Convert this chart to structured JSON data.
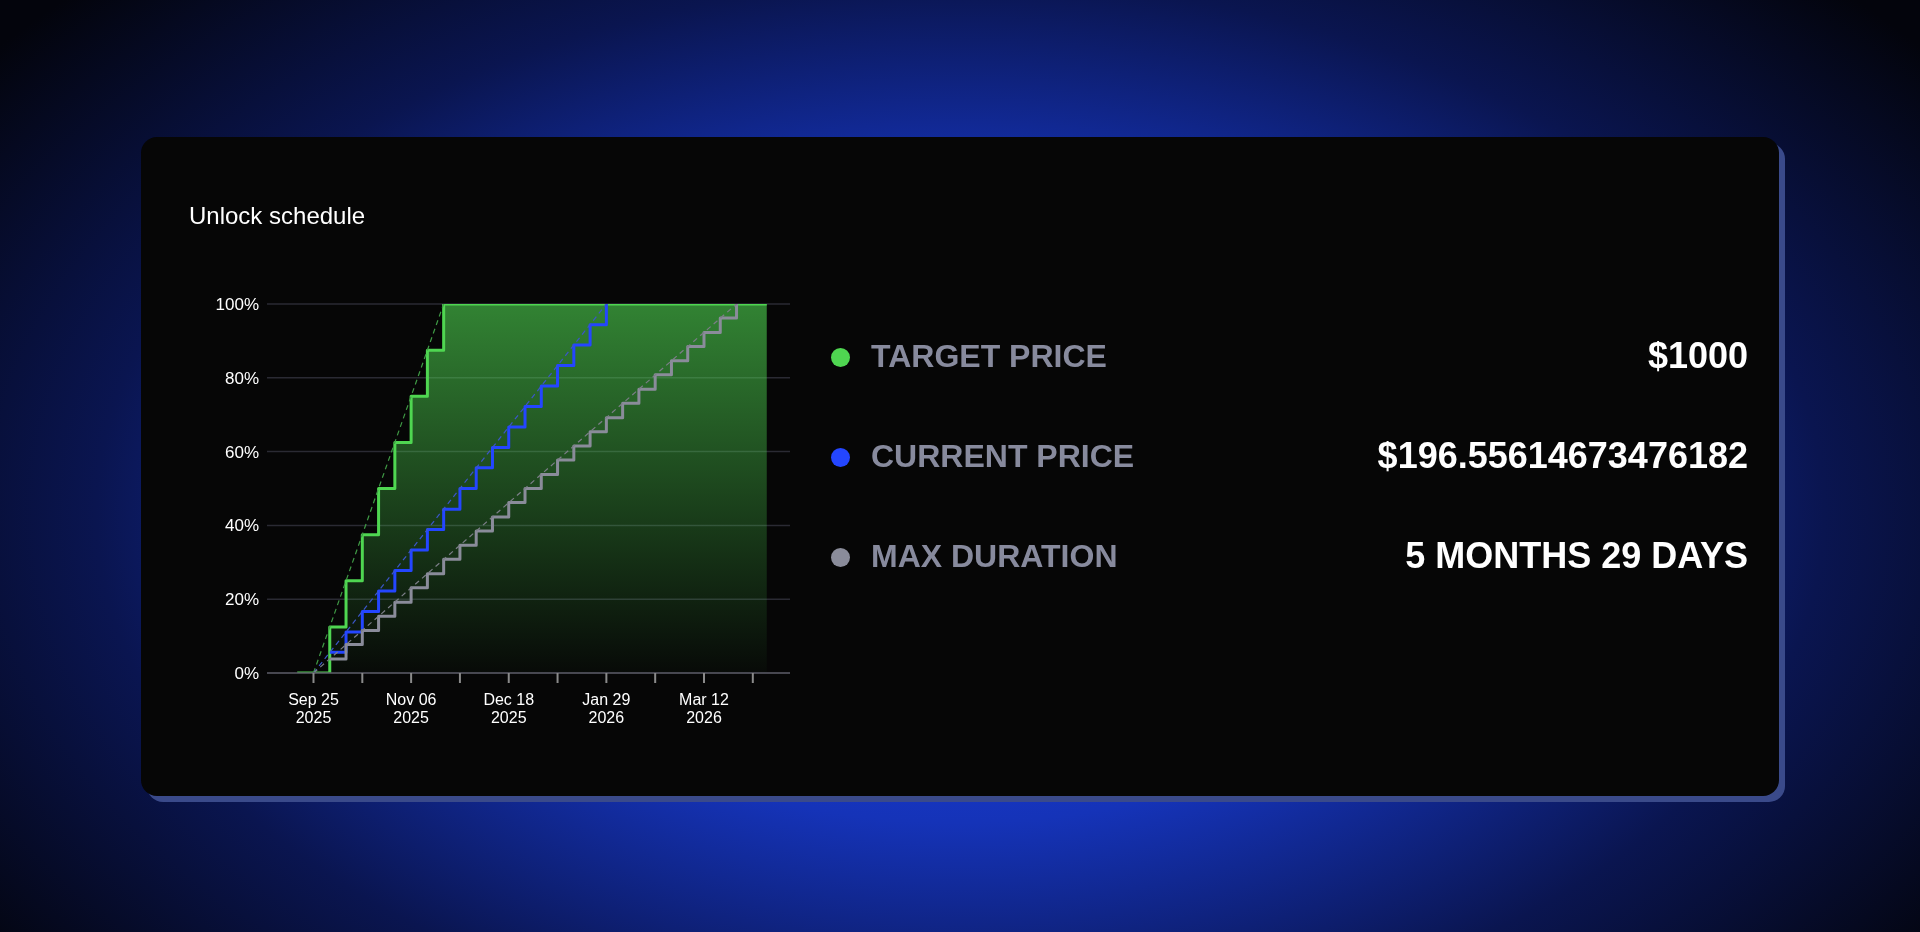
{
  "chart_data": {
    "type": "step",
    "title": "Unlock schedule",
    "xlim": [
      "2025-09-05",
      "2026-04-18"
    ],
    "xticks": [
      {
        "value": "2025-09-25",
        "label": "Sep 25\n2025"
      },
      {
        "value": "2025-10-16",
        "label": null
      },
      {
        "value": "2025-11-06",
        "label": "Nov 06\n2025"
      },
      {
        "value": "2025-11-27",
        "label": null
      },
      {
        "value": "2025-12-18",
        "label": "Dec 18\n2025"
      },
      {
        "value": "2026-01-08",
        "label": null
      },
      {
        "value": "2026-01-29",
        "label": "Jan 29\n2026"
      },
      {
        "value": "2026-02-19",
        "label": null
      },
      {
        "value": "2026-03-12",
        "label": "Mar 12\n2026"
      },
      {
        "value": "2026-04-02",
        "label": null
      }
    ],
    "ylim": [
      0,
      100
    ],
    "yticks": [
      {
        "value": 0,
        "label": "0%"
      },
      {
        "value": 20,
        "label": "20%"
      },
      {
        "value": 40,
        "label": "40%"
      },
      {
        "value": 60,
        "label": "60%"
      },
      {
        "value": 80,
        "label": "80%"
      },
      {
        "value": 100,
        "label": "100%"
      }
    ],
    "grid": "y",
    "legend": "right",
    "series": [
      {
        "name": "TARGET PRICE",
        "type": "area",
        "color": "#4fd651",
        "x": [
          "2025-09-18",
          "2025-10-02",
          "2025-10-09",
          "2025-10-16",
          "2025-10-23",
          "2025-10-30",
          "2025-11-06",
          "2025-11-13",
          "2025-11-20",
          "2026-04-08"
        ],
        "values": [
          0,
          12.5,
          25,
          37.5,
          50,
          62.5,
          75,
          87.5,
          100,
          100
        ]
      },
      {
        "name": "CURRENT PRICE",
        "color": "#2446ff",
        "x": [
          "2025-10-02",
          "2025-10-09",
          "2025-10-16",
          "2025-10-23",
          "2025-10-30",
          "2025-11-06",
          "2025-11-13",
          "2025-11-20",
          "2025-11-27",
          "2025-12-04",
          "2025-12-11",
          "2025-12-18",
          "2025-12-25",
          "2026-01-01",
          "2026-01-08",
          "2026-01-15",
          "2026-01-22",
          "2026-01-29"
        ],
        "values": [
          5.6,
          11.1,
          16.7,
          22.2,
          27.8,
          33.3,
          38.9,
          44.4,
          50,
          55.6,
          61.1,
          66.7,
          72.2,
          77.8,
          83.3,
          88.9,
          94.4,
          100
        ]
      },
      {
        "name": "MAX DURATION",
        "color": "#8a8c9a",
        "x": [
          "2025-10-02",
          "2025-10-09",
          "2025-10-16",
          "2025-10-23",
          "2025-10-30",
          "2025-11-06",
          "2025-11-13",
          "2025-11-20",
          "2025-11-27",
          "2025-12-04",
          "2025-12-11",
          "2025-12-18",
          "2025-12-25",
          "2026-01-01",
          "2026-01-08",
          "2026-01-15",
          "2026-01-22",
          "2026-01-29",
          "2026-02-05",
          "2026-02-12",
          "2026-02-19",
          "2026-02-26",
          "2026-03-05",
          "2026-03-12",
          "2026-03-19",
          "2026-03-26"
        ],
        "values": [
          3.8,
          7.7,
          11.5,
          15.4,
          19.2,
          23.1,
          26.9,
          30.8,
          34.6,
          38.5,
          42.3,
          46.2,
          50,
          53.8,
          57.7,
          61.5,
          65.4,
          69.2,
          73.1,
          76.9,
          80.8,
          84.6,
          88.5,
          92.3,
          96.2,
          100
        ]
      },
      {
        "type": "line",
        "line_style": "dashed",
        "color": "#3f9a45",
        "x": [
          "2025-09-25",
          "2025-11-20"
        ],
        "values": [
          0,
          100
        ]
      },
      {
        "type": "line",
        "line_style": "dashed",
        "color": "#3b56c8",
        "x": [
          "2025-09-25",
          "2026-01-29"
        ],
        "values": [
          0,
          100
        ]
      },
      {
        "type": "line",
        "line_style": "dashed",
        "color": "#7c7e88",
        "x": [
          "2025-09-25",
          "2026-03-26"
        ],
        "values": [
          0,
          100
        ]
      }
    ],
    "annotations": [
      "$1000",
      "$196.55614673476182",
      "5 MONTHS 29 DAYS"
    ]
  }
}
